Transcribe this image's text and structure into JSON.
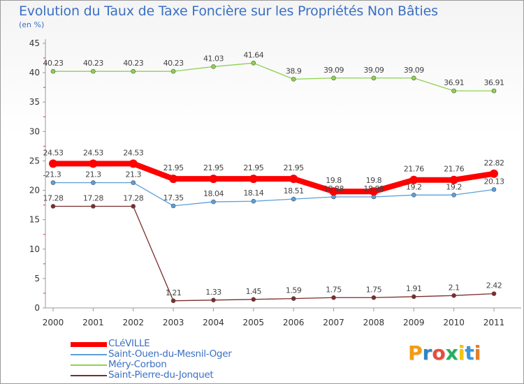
{
  "title": "Evolution du Taux de Taxe Foncière sur les Propriétés Non Bâties",
  "subtitle": "(en %)",
  "chart_data": {
    "type": "line",
    "title": "Evolution du Taux de Taxe Foncière sur les Propriétés Non Bâties",
    "ylabel": "(en %)",
    "xlabel": "",
    "ylim": [
      0,
      45
    ],
    "yticks": [
      0,
      5,
      10,
      15,
      20,
      25,
      30,
      35,
      40,
      45
    ],
    "categories": [
      "2000",
      "2001",
      "2002",
      "2003",
      "2004",
      "2005",
      "2006",
      "2007",
      "2008",
      "2009",
      "2010",
      "2011"
    ],
    "grid": false,
    "legend_position": "bottom-left",
    "series": [
      {
        "name": "Méry-Corbon",
        "color": "#8fd14f",
        "values": [
          40.23,
          40.23,
          40.23,
          40.23,
          41.03,
          41.64,
          38.9,
          39.09,
          39.09,
          39.09,
          36.91,
          36.91
        ],
        "labels": [
          "40.23",
          "40.23",
          "40.23",
          "40.23",
          "41.03",
          "41.64",
          "38.9",
          "39.09",
          "39.09",
          "39.09",
          "36.91",
          "36.91"
        ]
      },
      {
        "name": "Saint-Ouen-du-Mesnil-Oger",
        "color": "#5d9fd8",
        "values": [
          21.3,
          21.3,
          21.3,
          17.35,
          18.04,
          18.14,
          18.51,
          18.88,
          18.88,
          19.2,
          19.2,
          20.13
        ],
        "labels": [
          "21.3",
          "21.3",
          "21.3",
          "17.35",
          "18.04",
          "18.14",
          "18.51",
          "18.88",
          "18.88",
          "19.2",
          "19.2",
          "20.13"
        ]
      },
      {
        "name": "Saint-Pierre-du-Jonquet",
        "color": "#7b2d2d",
        "values": [
          17.28,
          17.28,
          17.28,
          1.21,
          1.33,
          1.45,
          1.59,
          1.75,
          1.75,
          1.91,
          2.1,
          2.42
        ],
        "labels": [
          "17.28",
          "17.28",
          "17.28",
          "1.21",
          "1.33",
          "1.45",
          "1.59",
          "1.75",
          "1.75",
          "1.91",
          "2.1",
          "2.42"
        ]
      },
      {
        "name": "CLéVILLE",
        "color": "#ff0000",
        "values": [
          24.53,
          24.53,
          24.53,
          21.95,
          21.95,
          21.95,
          21.95,
          19.8,
          19.8,
          21.76,
          21.76,
          22.82
        ],
        "labels": [
          "24.53",
          "24.53",
          "24.53",
          "21.95",
          "21.95",
          "21.95",
          "21.95",
          "19.8",
          "19.8",
          "21.76",
          "21.76",
          "22.82"
        ]
      }
    ]
  },
  "legend": [
    {
      "label": "CLéVILLE",
      "color": "#ff0000"
    },
    {
      "label": "Saint-Ouen-du-Mesnil-Oger",
      "color": "#5d9fd8"
    },
    {
      "label": "Méry-Corbon",
      "color": "#8fd14f"
    },
    {
      "label": "Saint-Pierre-du-Jonquet",
      "color": "#7b2d2d"
    }
  ],
  "logo": {
    "text": "Proxiti",
    "letters": [
      "P",
      "r",
      "o",
      "x",
      "i",
      "t",
      "i"
    ],
    "colors": [
      "#f39c12",
      "#2e86c1",
      "#e74c3c",
      "#27ae60",
      "#f1c40f",
      "#3498db",
      "#e67e22"
    ]
  }
}
